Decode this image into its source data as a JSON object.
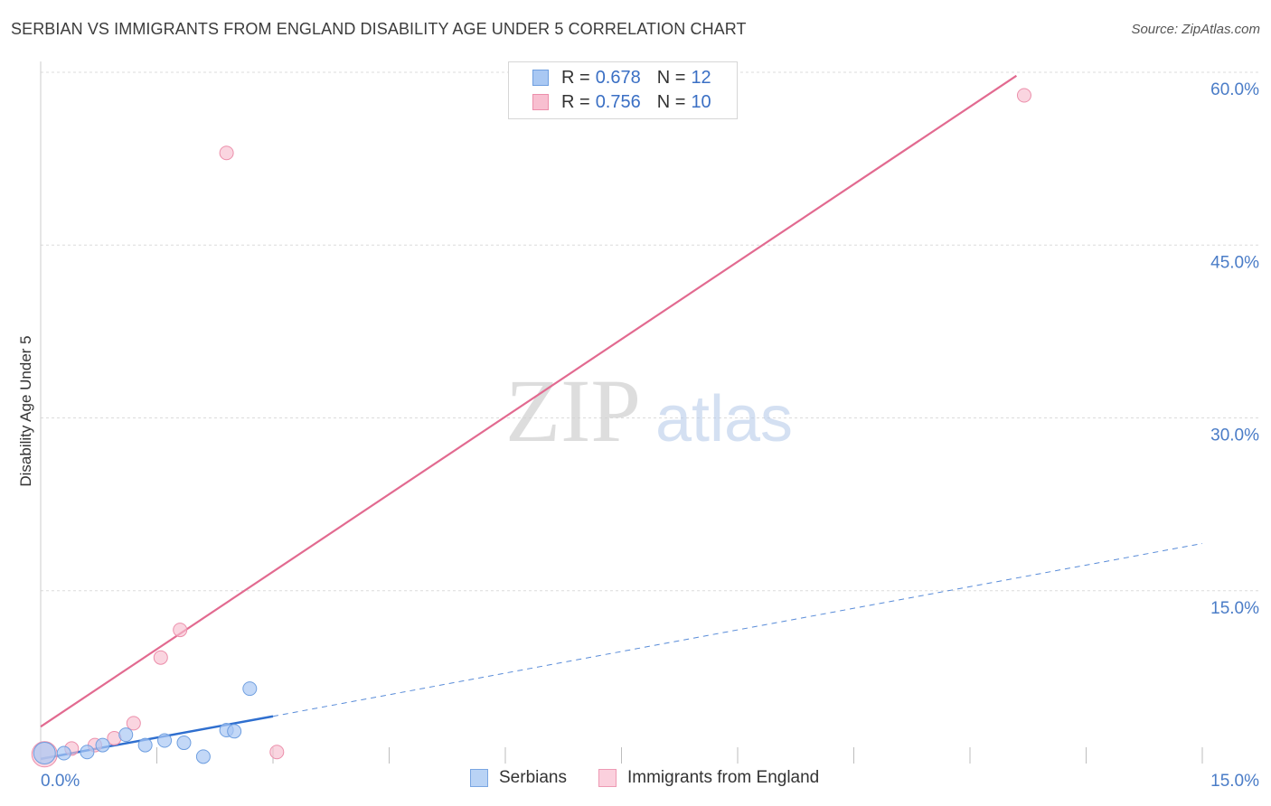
{
  "header": {
    "title": "SERBIAN VS IMMIGRANTS FROM ENGLAND DISABILITY AGE UNDER 5 CORRELATION CHART",
    "source": "Source: ZipAtlas.com"
  },
  "legend": {
    "series1": {
      "r_label": "R =",
      "r_value": "0.678",
      "n_label": "N =",
      "n_value": "12"
    },
    "series2": {
      "r_label": "R =",
      "r_value": "0.756",
      "n_label": "N =",
      "n_value": "10"
    }
  },
  "bottom_legend": {
    "serbians": "Serbians",
    "england": "Immigrants from England"
  },
  "watermark": {
    "zip": "ZIP",
    "atlas": "atlas"
  },
  "colors": {
    "serbians_fill": "#a9c8f3",
    "serbians_stroke": "#6f9fe0",
    "serbians_line": "#2f6fcf",
    "england_fill": "#f8bfd0",
    "england_stroke": "#ec8fab",
    "england_line": "#e26a90",
    "tick_label": "#4a7cc7"
  },
  "chart_data": {
    "type": "scatter",
    "title": "SERBIAN VS IMMIGRANTS FROM ENGLAND DISABILITY AGE UNDER 5 CORRELATION CHART",
    "xlabel": "",
    "ylabel": "Disability Age Under 5",
    "xlim": [
      0,
      15
    ],
    "ylim": [
      0,
      60
    ],
    "x_tick_labels": [
      "0.0%",
      "15.0%"
    ],
    "y_ticks": [
      15,
      30,
      45,
      60
    ],
    "y_tick_labels": [
      "15.0%",
      "30.0%",
      "45.0%",
      "60.0%"
    ],
    "grid": true,
    "series": [
      {
        "name": "Serbians",
        "r": 0.678,
        "n": 12,
        "points": [
          {
            "x": 0.05,
            "y": 0.9
          },
          {
            "x": 0.3,
            "y": 0.9
          },
          {
            "x": 0.6,
            "y": 1.0
          },
          {
            "x": 0.8,
            "y": 1.6
          },
          {
            "x": 1.1,
            "y": 2.5
          },
          {
            "x": 1.35,
            "y": 1.6
          },
          {
            "x": 1.6,
            "y": 2.0
          },
          {
            "x": 1.85,
            "y": 1.8
          },
          {
            "x": 2.1,
            "y": 0.6
          },
          {
            "x": 2.4,
            "y": 2.9
          },
          {
            "x": 2.5,
            "y": 2.8
          },
          {
            "x": 2.7,
            "y": 6.5
          }
        ],
        "trend_solid": {
          "x": [
            0,
            3.0
          ],
          "y": [
            0.4,
            4.1
          ]
        },
        "trend_dashed": {
          "x": [
            3.0,
            15.0
          ],
          "y": [
            4.1,
            19.1
          ]
        }
      },
      {
        "name": "Immigrants from England",
        "r": 0.756,
        "n": 10,
        "points": [
          {
            "x": 0.05,
            "y": 0.8
          },
          {
            "x": 0.4,
            "y": 1.3
          },
          {
            "x": 0.7,
            "y": 1.6
          },
          {
            "x": 0.95,
            "y": 2.2
          },
          {
            "x": 1.2,
            "y": 3.5
          },
          {
            "x": 1.55,
            "y": 9.2
          },
          {
            "x": 1.8,
            "y": 11.6
          },
          {
            "x": 2.4,
            "y": 53.0
          },
          {
            "x": 3.05,
            "y": 1.0
          },
          {
            "x": 12.7,
            "y": 58.0
          }
        ],
        "trend_solid": {
          "x": [
            0,
            12.6
          ],
          "y": [
            3.2,
            59.7
          ]
        }
      }
    ]
  }
}
